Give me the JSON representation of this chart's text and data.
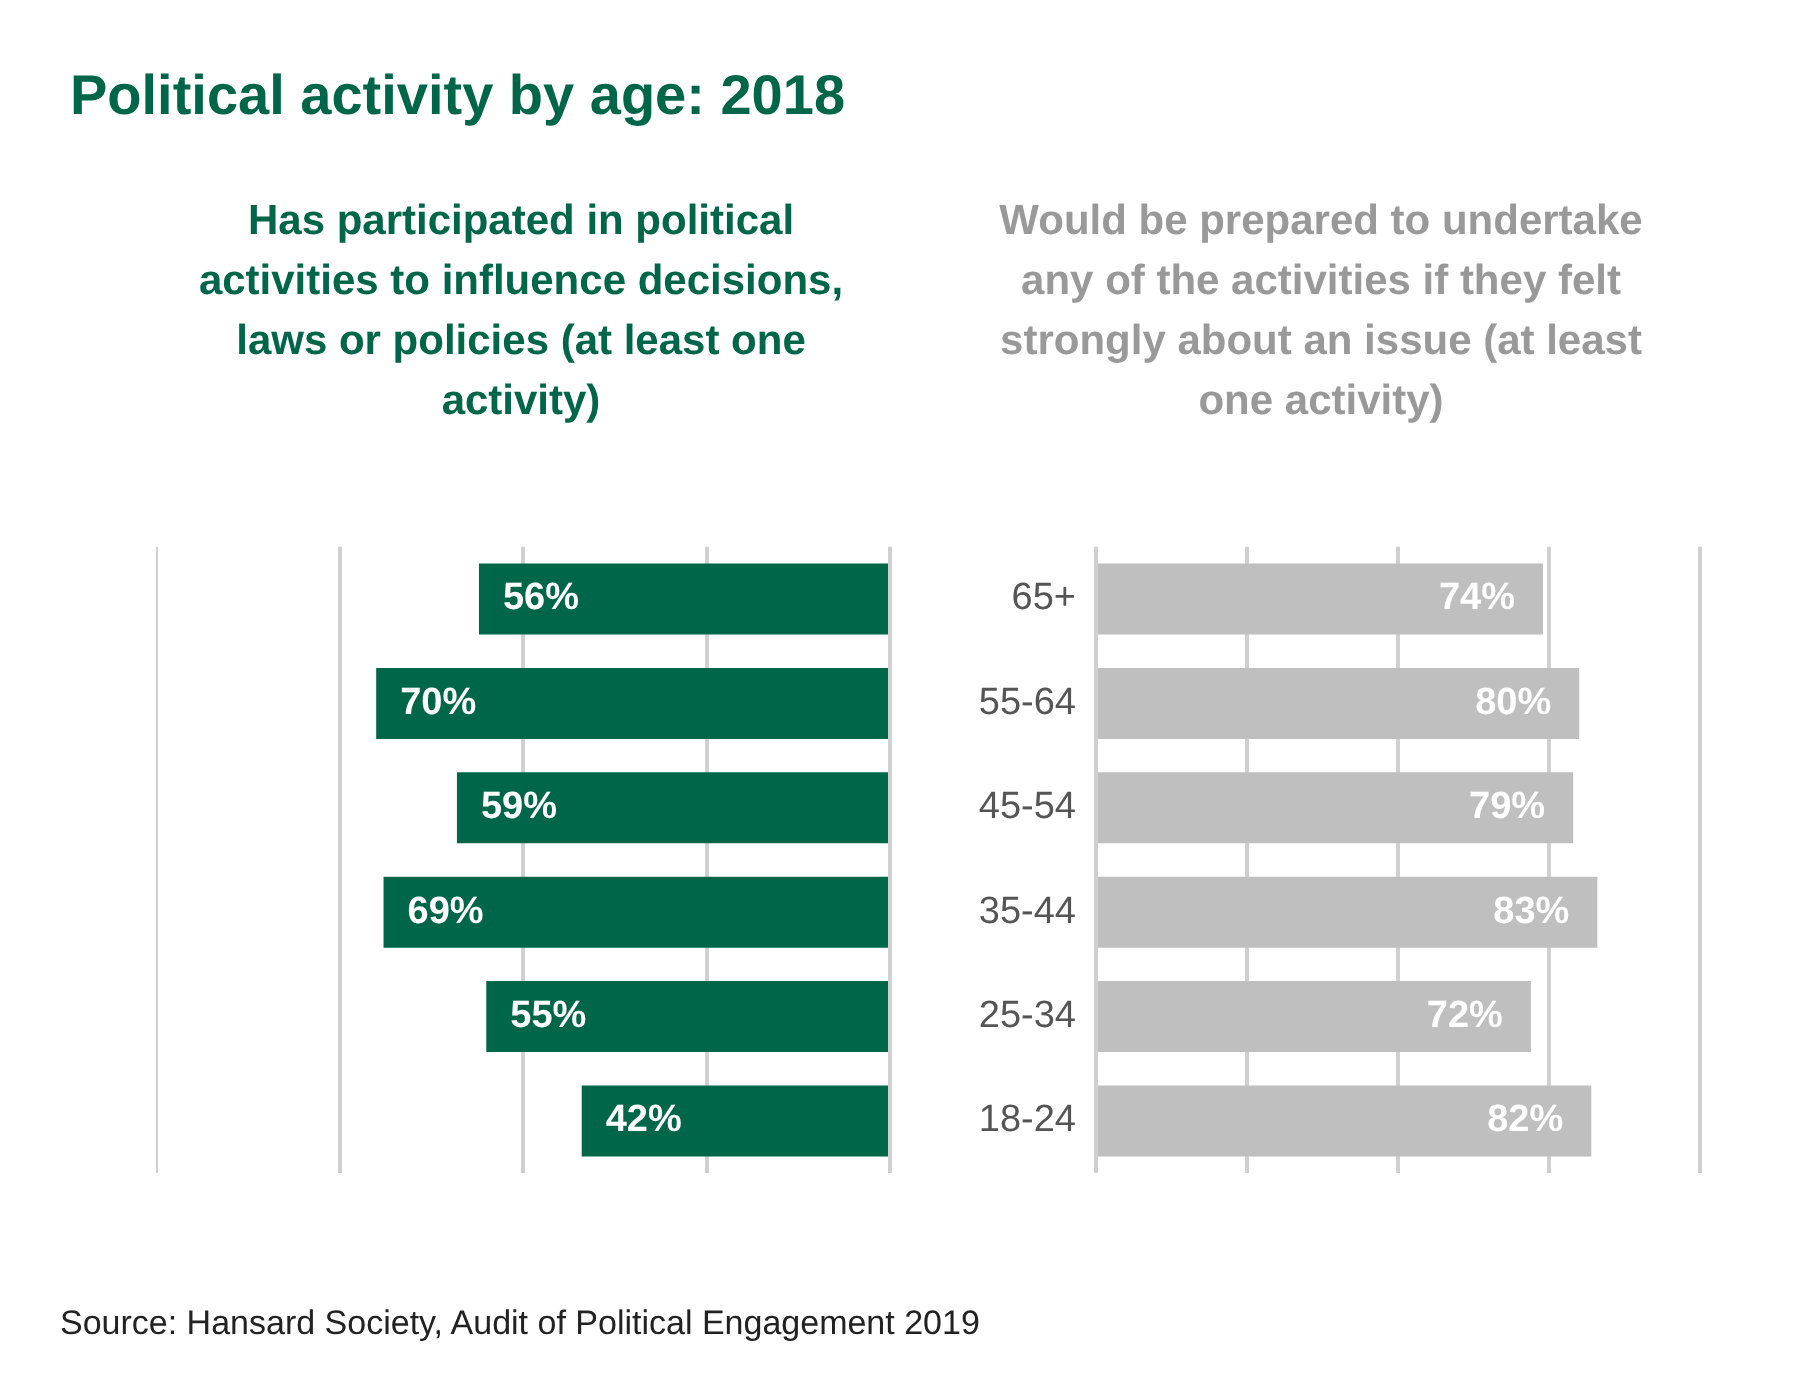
{
  "chart_data": [
    {
      "type": "bar",
      "orientation": "horizontal",
      "title": "Political activity by age: 2018",
      "subtitle": "Has participated in political activities to influence decisions, laws or policies (at least one activity)",
      "categories": [
        "65+",
        "55-64",
        "45-54",
        "35-44",
        "25-34",
        "18-24"
      ],
      "series": [
        {
          "color": "#00664a",
          "values": [
            56,
            70,
            59,
            69,
            55,
            42
          ],
          "value_labels": [
            "56%",
            "70%",
            "59%",
            "69%",
            "55%",
            "42%"
          ]
        }
      ],
      "xlim": [
        100,
        0
      ],
      "xticks": [
        {
          "value": 100,
          "label": null
        },
        {
          "value": 75,
          "label": null
        },
        {
          "value": 50,
          "label": null
        },
        {
          "value": 25,
          "label": null
        },
        {
          "value": 0,
          "label": null
        }
      ],
      "grid": "x",
      "tick_labels": false
    },
    {
      "type": "bar",
      "orientation": "horizontal",
      "title": "Would be prepared to undertake any of the activities if they felt strongly about an issue (at least one activity)",
      "categories": [
        "65+",
        "55-64",
        "45-54",
        "35-44",
        "25-34",
        "18-24"
      ],
      "series": [
        {
          "color": "#bfbfbf",
          "values": [
            74,
            80,
            79,
            83,
            72,
            82
          ],
          "value_labels": [
            "74%",
            "80%",
            "79%",
            "83%",
            "72%",
            "82%"
          ]
        }
      ],
      "xlim": [
        0,
        100
      ],
      "xticks": [
        {
          "value": 0,
          "label": null
        },
        {
          "value": 25,
          "label": null
        },
        {
          "value": 50,
          "label": null
        },
        {
          "value": 75,
          "label": null
        },
        {
          "value": 100,
          "label": null
        }
      ],
      "grid": "x",
      "tick_labels": "y",
      "annotations": [
        "Source: Hansard Society, Audit of Political Engagement 2019"
      ]
    }
  ]
}
